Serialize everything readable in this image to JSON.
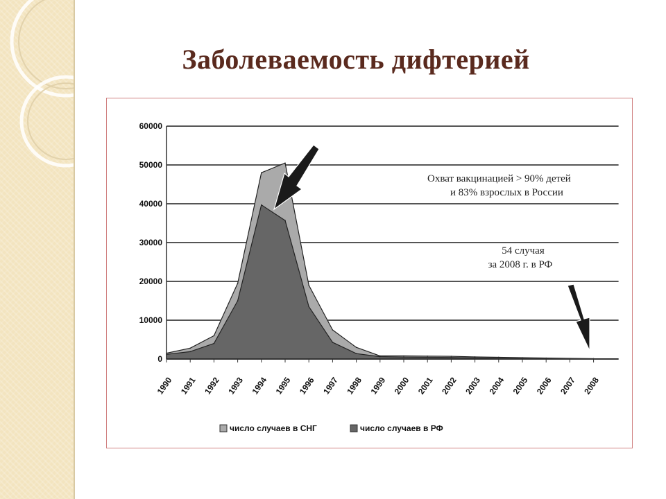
{
  "slide": {
    "title": "Заболеваемость дифтерией"
  },
  "colors": {
    "title": "#5a2a1e",
    "cis_area": "#aaaaaa",
    "rf_area": "#666666",
    "frame_border": "#d08080",
    "side_panel": "#f3e4bf"
  },
  "chart_data": {
    "type": "area",
    "categories": [
      "1990",
      "1991",
      "1992",
      "1993",
      "1994",
      "1995",
      "1996",
      "1997",
      "1998",
      "1999",
      "2000",
      "2001",
      "2002",
      "2003",
      "2004",
      "2005",
      "2006",
      "2007",
      "2008"
    ],
    "series": [
      {
        "name": "число случаев в СНГ",
        "values": [
          1500,
          2800,
          6000,
          19500,
          48000,
          50500,
          19000,
          7500,
          3000,
          800,
          800,
          750,
          700,
          550,
          450,
          350,
          250,
          150,
          100
        ]
      },
      {
        "name": "число случаев в РФ",
        "values": [
          1200,
          1900,
          4000,
          15000,
          39700,
          35700,
          13500,
          4300,
          1400,
          600,
          500,
          450,
          400,
          300,
          200,
          150,
          80,
          60,
          54
        ]
      }
    ],
    "yticks": [
      "60000",
      "50000",
      "40000",
      "30000",
      "20000",
      "10000",
      "0"
    ],
    "ylim": [
      0,
      60000
    ],
    "grid": true,
    "legend": "bottom",
    "annotations": [
      {
        "lines": [
          "Охват вакцинацией > 90% детей",
          "и 83% взрослых в России"
        ]
      },
      {
        "lines": [
          "54 случая",
          "за 2008 г. в РФ"
        ]
      }
    ]
  }
}
